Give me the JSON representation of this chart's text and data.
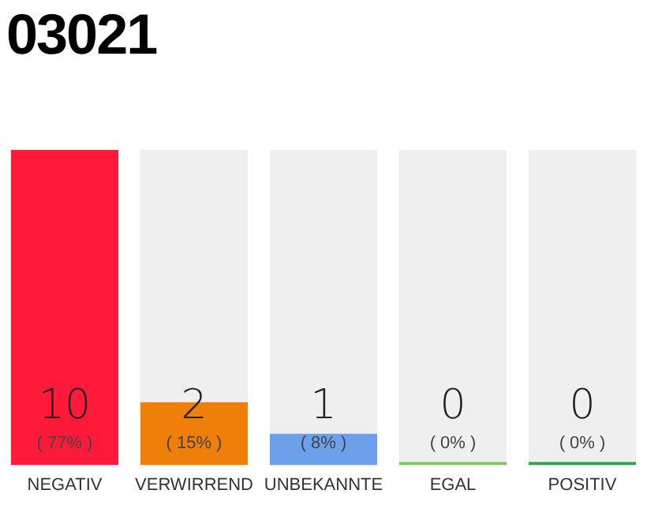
{
  "chart_data": {
    "type": "bar",
    "title": "03021",
    "categories": [
      "NEGATIV",
      "VERWIRREND",
      "UNBEKANNTE",
      "EGAL",
      "POSITIV"
    ],
    "values": [
      10,
      2,
      1,
      0,
      0
    ],
    "colors": [
      "#ff1a3a",
      "#f07f0a",
      "#6ca0ea",
      "#7ccc5c",
      "#22aa44"
    ],
    "value_labels": [
      "10\n( 77% )",
      "2\n( 15% )",
      "1\n( 8% )",
      "0\n( 0% )",
      "0\n( 0% )"
    ],
    "grid": false,
    "legend": false
  }
}
